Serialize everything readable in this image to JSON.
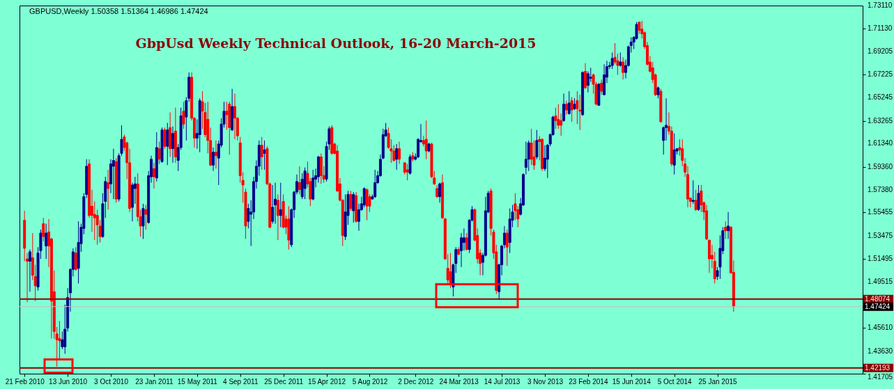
{
  "chart_data": {
    "type": "candlestick",
    "title": "GbpUsd Weekly Technical Outlook, 16-20 March-2015",
    "annotations": [
      "GBPUSD,Weekly  1.50358 1.51364 1.46986 1.47424"
    ],
    "x": [
      "2010-02-21",
      "2010-02-28",
      "2010-03-07",
      "2010-03-14",
      "2010-03-21",
      "2010-03-28",
      "2010-04-04",
      "2010-04-11",
      "2010-04-18",
      "2010-04-25",
      "2010-05-02",
      "2010-05-09",
      "2010-05-16",
      "2010-05-23",
      "2010-05-30",
      "2010-06-06",
      "2010-06-13",
      "2010-06-20",
      "2010-06-27",
      "2010-07-04",
      "2010-07-11",
      "2010-07-18",
      "2010-07-25",
      "2010-08-01",
      "2010-08-08",
      "2010-08-15",
      "2010-08-22",
      "2010-08-29",
      "2010-09-05",
      "2010-09-12",
      "2010-09-19",
      "2010-09-26",
      "2010-10-03",
      "2010-10-10",
      "2010-10-17",
      "2010-10-24",
      "2010-10-31",
      "2010-11-07",
      "2010-11-14",
      "2010-11-21",
      "2010-11-28",
      "2010-12-05",
      "2010-12-12",
      "2010-12-19",
      "2010-12-26",
      "2011-01-02",
      "2011-01-09",
      "2011-01-16",
      "2011-01-23",
      "2011-01-30",
      "2011-02-06",
      "2011-02-13",
      "2011-02-20",
      "2011-02-27",
      "2011-03-06",
      "2011-03-13",
      "2011-03-20",
      "2011-03-27",
      "2011-04-03",
      "2011-04-10",
      "2011-04-17",
      "2011-04-24",
      "2011-05-01",
      "2011-05-08",
      "2011-05-15",
      "2011-05-22",
      "2011-05-29",
      "2011-06-05",
      "2011-06-12",
      "2011-06-19",
      "2011-06-26",
      "2011-07-03",
      "2011-07-10",
      "2011-07-17",
      "2011-07-24",
      "2011-07-31",
      "2011-08-07",
      "2011-08-14",
      "2011-08-21",
      "2011-08-28",
      "2011-09-04",
      "2011-09-11",
      "2011-09-18",
      "2011-09-25",
      "2011-10-02",
      "2011-10-09",
      "2011-10-16",
      "2011-10-23",
      "2011-10-30",
      "2011-11-06",
      "2011-11-13",
      "2011-11-20",
      "2011-11-27",
      "2011-12-04",
      "2011-12-11",
      "2011-12-18",
      "2011-12-25",
      "2012-01-01",
      "2012-01-08",
      "2012-01-15",
      "2012-01-22",
      "2012-01-29",
      "2012-02-05",
      "2012-02-12",
      "2012-02-19",
      "2012-02-26",
      "2012-03-04",
      "2012-03-11",
      "2012-03-18",
      "2012-03-25",
      "2012-04-01",
      "2012-04-08",
      "2012-04-15",
      "2012-04-22",
      "2012-04-29",
      "2012-05-06",
      "2012-05-13",
      "2012-05-20",
      "2012-05-27",
      "2012-06-03",
      "2012-06-10",
      "2012-06-17",
      "2012-06-24",
      "2012-07-01",
      "2012-07-08",
      "2012-07-15",
      "2012-07-22",
      "2012-07-29",
      "2012-08-05",
      "2012-08-12",
      "2012-08-19",
      "2012-08-26",
      "2012-09-02",
      "2012-09-09",
      "2012-09-16",
      "2012-09-23",
      "2012-09-30",
      "2012-10-07",
      "2012-10-14",
      "2012-10-21",
      "2012-11-04",
      "2012-11-11",
      "2012-11-18",
      "2012-11-25",
      "2012-12-02",
      "2012-12-09",
      "2012-12-16",
      "2012-12-23",
      "2012-12-30",
      "2013-01-06",
      "2013-01-13",
      "2013-01-20",
      "2013-01-27",
      "2013-02-03",
      "2013-02-10",
      "2013-02-17",
      "2013-02-24",
      "2013-03-03",
      "2013-03-10",
      "2013-03-17",
      "2013-03-24",
      "2013-03-31",
      "2013-04-07",
      "2013-04-14",
      "2013-04-21",
      "2013-04-28",
      "2013-05-05",
      "2013-05-12",
      "2013-05-19",
      "2013-05-26",
      "2013-06-02",
      "2013-06-09",
      "2013-06-16",
      "2013-06-23",
      "2013-06-30",
      "2013-07-07",
      "2013-07-14",
      "2013-07-21",
      "2013-07-28",
      "2013-08-04",
      "2013-08-11",
      "2013-08-18",
      "2013-08-25",
      "2013-09-01",
      "2013-09-08",
      "2013-09-15",
      "2013-09-22",
      "2013-09-29",
      "2013-10-06",
      "2013-10-13",
      "2013-10-20",
      "2013-10-27",
      "2013-11-03",
      "2013-11-10",
      "2013-11-17",
      "2013-11-24",
      "2013-12-01",
      "2013-12-08",
      "2013-12-15",
      "2013-12-22",
      "2013-12-29",
      "2014-01-05",
      "2014-01-12",
      "2014-01-19",
      "2014-01-26",
      "2014-02-02",
      "2014-02-09",
      "2014-02-16",
      "2014-02-23",
      "2014-03-02",
      "2014-03-09",
      "2014-03-16",
      "2014-03-23",
      "2014-03-30",
      "2014-04-06",
      "2014-04-13",
      "2014-04-20",
      "2014-04-27",
      "2014-05-04",
      "2014-05-11",
      "2014-05-18",
      "2014-05-25",
      "2014-06-01",
      "2014-06-08",
      "2014-06-15",
      "2014-06-22",
      "2014-06-29",
      "2014-07-06",
      "2014-07-13",
      "2014-07-20",
      "2014-07-27",
      "2014-08-03",
      "2014-08-10",
      "2014-08-17",
      "2014-08-24",
      "2014-08-31",
      "2014-09-07",
      "2014-09-14",
      "2014-09-21",
      "2014-09-28",
      "2014-10-05",
      "2014-10-12",
      "2014-10-19",
      "2014-10-26",
      "2014-11-02",
      "2014-11-09",
      "2014-11-16",
      "2014-11-23",
      "2014-11-30",
      "2014-12-07",
      "2014-12-14",
      "2014-12-21",
      "2014-12-28",
      "2015-01-04",
      "2015-01-11",
      "2015-01-18",
      "2015-01-25",
      "2015-02-01",
      "2015-02-08",
      "2015-02-15",
      "2015-02-22",
      "2015-03-01",
      "2015-03-08"
    ],
    "ohlc": [
      [
        1.548,
        1.556,
        1.513,
        1.524
      ],
      [
        1.515,
        1.52,
        1.478,
        1.513
      ],
      [
        1.513,
        1.523,
        1.487,
        1.521
      ],
      [
        1.516,
        1.537,
        1.497,
        1.501
      ],
      [
        1.5,
        1.51,
        1.479,
        1.492
      ],
      [
        1.491,
        1.525,
        1.488,
        1.52
      ],
      [
        1.522,
        1.54,
        1.515,
        1.537
      ],
      [
        1.545,
        1.55,
        1.53,
        1.534
      ],
      [
        1.526,
        1.545,
        1.515,
        1.537
      ],
      [
        1.538,
        1.549,
        1.508,
        1.526
      ],
      [
        1.532,
        1.533,
        1.447,
        1.479
      ],
      [
        1.487,
        1.505,
        1.447,
        1.453
      ],
      [
        1.451,
        1.457,
        1.423,
        1.446
      ],
      [
        1.447,
        1.462,
        1.43,
        1.445
      ],
      [
        1.44,
        1.453,
        1.438,
        1.446
      ],
      [
        1.44,
        1.476,
        1.434,
        1.455
      ],
      [
        1.456,
        1.49,
        1.453,
        1.482
      ],
      [
        1.486,
        1.507,
        1.47,
        1.506
      ],
      [
        1.506,
        1.524,
        1.5,
        1.521
      ],
      [
        1.52,
        1.525,
        1.505,
        1.506
      ],
      [
        1.507,
        1.547,
        1.494,
        1.529
      ],
      [
        1.528,
        1.545,
        1.521,
        1.542
      ],
      [
        1.541,
        1.571,
        1.536,
        1.568
      ],
      [
        1.57,
        1.6,
        1.567,
        1.594
      ],
      [
        1.596,
        1.6,
        1.55,
        1.552
      ],
      [
        1.56,
        1.574,
        1.538,
        1.552
      ],
      [
        1.553,
        1.564,
        1.531,
        1.55
      ],
      [
        1.552,
        1.557,
        1.527,
        1.544
      ],
      [
        1.543,
        1.548,
        1.529,
        1.534
      ],
      [
        1.534,
        1.571,
        1.533,
        1.562
      ],
      [
        1.564,
        1.585,
        1.55,
        1.581
      ],
      [
        1.58,
        1.591,
        1.557,
        1.575
      ],
      [
        1.579,
        1.6,
        1.571,
        1.596
      ],
      [
        1.594,
        1.609,
        1.566,
        1.599
      ],
      [
        1.598,
        1.601,
        1.563,
        1.566
      ],
      [
        1.566,
        1.605,
        1.564,
        1.603
      ],
      [
        1.605,
        1.629,
        1.603,
        1.617
      ],
      [
        1.619,
        1.621,
        1.607,
        1.61
      ],
      [
        1.614,
        1.615,
        1.583,
        1.597
      ],
      [
        1.597,
        1.609,
        1.555,
        1.558
      ],
      [
        1.559,
        1.58,
        1.547,
        1.578
      ],
      [
        1.575,
        1.585,
        1.562,
        1.579
      ],
      [
        1.579,
        1.588,
        1.547,
        1.551
      ],
      [
        1.551,
        1.557,
        1.534,
        1.543
      ],
      [
        1.543,
        1.562,
        1.532,
        1.558
      ],
      [
        1.557,
        1.561,
        1.54,
        1.553
      ],
      [
        1.546,
        1.59,
        1.545,
        1.586
      ],
      [
        1.585,
        1.603,
        1.58,
        1.6
      ],
      [
        1.592,
        1.597,
        1.575,
        1.585
      ],
      [
        1.584,
        1.623,
        1.581,
        1.61
      ],
      [
        1.609,
        1.615,
        1.596,
        1.6
      ],
      [
        1.598,
        1.627,
        1.597,
        1.625
      ],
      [
        1.625,
        1.627,
        1.609,
        1.611
      ],
      [
        1.611,
        1.631,
        1.595,
        1.625
      ],
      [
        1.627,
        1.64,
        1.602,
        1.609
      ],
      [
        1.609,
        1.628,
        1.597,
        1.622
      ],
      [
        1.624,
        1.644,
        1.597,
        1.602
      ],
      [
        1.599,
        1.613,
        1.59,
        1.61
      ],
      [
        1.61,
        1.644,
        1.608,
        1.637
      ],
      [
        1.641,
        1.649,
        1.626,
        1.63
      ],
      [
        1.636,
        1.653,
        1.616,
        1.65
      ],
      [
        1.652,
        1.674,
        1.649,
        1.67
      ],
      [
        1.67,
        1.674,
        1.633,
        1.635
      ],
      [
        1.635,
        1.636,
        1.61,
        1.618
      ],
      [
        1.618,
        1.634,
        1.609,
        1.622
      ],
      [
        1.621,
        1.652,
        1.606,
        1.65
      ],
      [
        1.649,
        1.658,
        1.626,
        1.641
      ],
      [
        1.64,
        1.648,
        1.619,
        1.621
      ],
      [
        1.634,
        1.649,
        1.605,
        1.616
      ],
      [
        1.616,
        1.627,
        1.594,
        1.595
      ],
      [
        1.595,
        1.61,
        1.59,
        1.606
      ],
      [
        1.606,
        1.616,
        1.592,
        1.603
      ],
      [
        1.601,
        1.616,
        1.578,
        1.613
      ],
      [
        1.612,
        1.635,
        1.61,
        1.63
      ],
      [
        1.63,
        1.649,
        1.627,
        1.641
      ],
      [
        1.641,
        1.649,
        1.625,
        1.638
      ],
      [
        1.647,
        1.649,
        1.604,
        1.627
      ],
      [
        1.625,
        1.66,
        1.624,
        1.645
      ],
      [
        1.645,
        1.656,
        1.617,
        1.635
      ],
      [
        1.635,
        1.636,
        1.616,
        1.62
      ],
      [
        1.614,
        1.619,
        1.58,
        1.586
      ],
      [
        1.582,
        1.589,
        1.563,
        1.578
      ],
      [
        1.572,
        1.575,
        1.532,
        1.543
      ],
      [
        1.547,
        1.562,
        1.541,
        1.558
      ],
      [
        1.553,
        1.565,
        1.526,
        1.555
      ],
      [
        1.555,
        1.585,
        1.549,
        1.581
      ],
      [
        1.581,
        1.599,
        1.575,
        1.594
      ],
      [
        1.594,
        1.616,
        1.586,
        1.612
      ],
      [
        1.612,
        1.619,
        1.591,
        1.602
      ],
      [
        1.605,
        1.616,
        1.591,
        1.608
      ],
      [
        1.609,
        1.611,
        1.578,
        1.579
      ],
      [
        1.579,
        1.58,
        1.541,
        1.542
      ],
      [
        1.547,
        1.578,
        1.545,
        1.559
      ],
      [
        1.561,
        1.58,
        1.545,
        1.566
      ],
      [
        1.565,
        1.57,
        1.531,
        1.552
      ],
      [
        1.552,
        1.58,
        1.542,
        1.557
      ],
      [
        1.564,
        1.57,
        1.541,
        1.542
      ],
      [
        1.549,
        1.552,
        1.536,
        1.542
      ],
      [
        1.549,
        1.56,
        1.523,
        1.531
      ],
      [
        1.527,
        1.558,
        1.525,
        1.557
      ],
      [
        1.557,
        1.573,
        1.55,
        1.572
      ],
      [
        1.572,
        1.587,
        1.57,
        1.581
      ],
      [
        1.58,
        1.594,
        1.57,
        1.574
      ],
      [
        1.568,
        1.588,
        1.566,
        1.583
      ],
      [
        1.575,
        1.593,
        1.566,
        1.59
      ],
      [
        1.588,
        1.598,
        1.576,
        1.579
      ],
      [
        1.581,
        1.584,
        1.56,
        1.566
      ],
      [
        1.566,
        1.591,
        1.565,
        1.584
      ],
      [
        1.583,
        1.592,
        1.576,
        1.586
      ],
      [
        1.585,
        1.603,
        1.58,
        1.602
      ],
      [
        1.602,
        1.605,
        1.579,
        1.586
      ],
      [
        1.586,
        1.594,
        1.58,
        1.583
      ],
      [
        1.583,
        1.615,
        1.581,
        1.611
      ],
      [
        1.613,
        1.628,
        1.608,
        1.626
      ],
      [
        1.627,
        1.629,
        1.604,
        1.605
      ],
      [
        1.613,
        1.614,
        1.604,
        1.605
      ],
      [
        1.607,
        1.612,
        1.572,
        1.573
      ],
      [
        1.579,
        1.584,
        1.564,
        1.565
      ],
      [
        1.565,
        1.566,
        1.526,
        1.535
      ],
      [
        1.534,
        1.57,
        1.531,
        1.555
      ],
      [
        1.552,
        1.573,
        1.544,
        1.57
      ],
      [
        1.57,
        1.573,
        1.556,
        1.558
      ],
      [
        1.556,
        1.572,
        1.546,
        1.57
      ],
      [
        1.569,
        1.572,
        1.546,
        1.547
      ],
      [
        1.547,
        1.562,
        1.539,
        1.557
      ],
      [
        1.557,
        1.568,
        1.556,
        1.562
      ],
      [
        1.561,
        1.576,
        1.559,
        1.575
      ],
      [
        1.574,
        1.575,
        1.548,
        1.56
      ],
      [
        1.568,
        1.57,
        1.555,
        1.56
      ],
      [
        1.566,
        1.57,
        1.566,
        1.568
      ],
      [
        1.568,
        1.591,
        1.567,
        1.58
      ],
      [
        1.58,
        1.59,
        1.579,
        1.586
      ],
      [
        1.586,
        1.604,
        1.585,
        1.6
      ],
      [
        1.601,
        1.626,
        1.6,
        1.621
      ],
      [
        1.62,
        1.631,
        1.619,
        1.625
      ],
      [
        1.622,
        1.627,
        1.609,
        1.61
      ],
      [
        1.609,
        1.617,
        1.597,
        1.607
      ],
      [
        1.607,
        1.612,
        1.598,
        1.599
      ],
      [
        1.6,
        1.613,
        1.591,
        1.609
      ],
      [
        1.609,
        1.615,
        1.596,
        1.6
      ],
      [
        1.597,
        1.597,
        1.587,
        1.589
      ],
      [
        1.591,
        1.596,
        1.582,
        1.589
      ],
      [
        1.588,
        1.604,
        1.587,
        1.602
      ],
      [
        1.603,
        1.606,
        1.598,
        1.6
      ],
      [
        1.6,
        1.605,
        1.599,
        1.602
      ],
      [
        1.602,
        1.618,
        1.601,
        1.617
      ],
      [
        1.615,
        1.63,
        1.614,
        1.616
      ],
      [
        1.616,
        1.62,
        1.611,
        1.613
      ],
      [
        1.617,
        1.633,
        1.6,
        1.607
      ],
      [
        1.607,
        1.614,
        1.606,
        1.613
      ],
      [
        1.613,
        1.614,
        1.584,
        1.585
      ],
      [
        1.584,
        1.59,
        1.578,
        1.579
      ],
      [
        1.575,
        1.578,
        1.567,
        1.568
      ],
      [
        1.568,
        1.58,
        1.563,
        1.579
      ],
      [
        1.58,
        1.587,
        1.549,
        1.55
      ],
      [
        1.549,
        1.55,
        1.514,
        1.515
      ],
      [
        1.507,
        1.519,
        1.493,
        1.497
      ],
      [
        1.504,
        1.52,
        1.49,
        1.493
      ],
      [
        1.491,
        1.511,
        1.483,
        1.51
      ],
      [
        1.511,
        1.525,
        1.503,
        1.523
      ],
      [
        1.523,
        1.525,
        1.518,
        1.519
      ],
      [
        1.522,
        1.537,
        1.508,
        1.533
      ],
      [
        1.529,
        1.541,
        1.522,
        1.533
      ],
      [
        1.533,
        1.537,
        1.522,
        1.523
      ],
      [
        1.523,
        1.549,
        1.52,
        1.548
      ],
      [
        1.548,
        1.56,
        1.547,
        1.557
      ],
      [
        1.557,
        1.558,
        1.53,
        1.531
      ],
      [
        1.535,
        1.541,
        1.511,
        1.515
      ],
      [
        1.52,
        1.523,
        1.501,
        1.511
      ],
      [
        1.512,
        1.52,
        1.501,
        1.518
      ],
      [
        1.518,
        1.568,
        1.517,
        1.556
      ],
      [
        1.555,
        1.573,
        1.554,
        1.571
      ],
      [
        1.573,
        1.575,
        1.535,
        1.541
      ],
      [
        1.538,
        1.54,
        1.515,
        1.52
      ],
      [
        1.521,
        1.527,
        1.485,
        1.488
      ],
      [
        1.487,
        1.511,
        1.48,
        1.51
      ],
      [
        1.51,
        1.527,
        1.501,
        1.526
      ],
      [
        1.527,
        1.543,
        1.524,
        1.537
      ],
      [
        1.537,
        1.54,
        1.509,
        1.525
      ],
      [
        1.529,
        1.558,
        1.52,
        1.549
      ],
      [
        1.548,
        1.561,
        1.542,
        1.555
      ],
      [
        1.562,
        1.571,
        1.548,
        1.556
      ],
      [
        1.557,
        1.56,
        1.542,
        1.549
      ],
      [
        1.553,
        1.567,
        1.552,
        1.562
      ],
      [
        1.561,
        1.588,
        1.56,
        1.587
      ],
      [
        1.593,
        1.615,
        1.587,
        1.6
      ],
      [
        1.6,
        1.616,
        1.59,
        1.614
      ],
      [
        1.614,
        1.626,
        1.595,
        1.6
      ],
      [
        1.602,
        1.616,
        1.591,
        1.595
      ],
      [
        1.602,
        1.625,
        1.6,
        1.616
      ],
      [
        1.617,
        1.62,
        1.599,
        1.615
      ],
      [
        1.617,
        1.618,
        1.59,
        1.592
      ],
      [
        1.592,
        1.612,
        1.59,
        1.601
      ],
      [
        1.6,
        1.613,
        1.584,
        1.612
      ],
      [
        1.613,
        1.622,
        1.611,
        1.621
      ],
      [
        1.621,
        1.637,
        1.62,
        1.636
      ],
      [
        1.637,
        1.644,
        1.626,
        1.633
      ],
      [
        1.634,
        1.647,
        1.626,
        1.629
      ],
      [
        1.633,
        1.639,
        1.62,
        1.629
      ],
      [
        1.633,
        1.656,
        1.632,
        1.647
      ],
      [
        1.647,
        1.65,
        1.638,
        1.642
      ],
      [
        1.639,
        1.658,
        1.638,
        1.648
      ],
      [
        1.65,
        1.653,
        1.632,
        1.642
      ],
      [
        1.643,
        1.652,
        1.642,
        1.647
      ],
      [
        1.65,
        1.658,
        1.63,
        1.643
      ],
      [
        1.642,
        1.655,
        1.625,
        1.641
      ],
      [
        1.638,
        1.675,
        1.637,
        1.674
      ],
      [
        1.675,
        1.682,
        1.66,
        1.661
      ],
      [
        1.663,
        1.675,
        1.657,
        1.673
      ],
      [
        1.669,
        1.678,
        1.666,
        1.67
      ],
      [
        1.672,
        1.673,
        1.656,
        1.664
      ],
      [
        1.664,
        1.666,
        1.646,
        1.647
      ],
      [
        1.646,
        1.665,
        1.646,
        1.664
      ],
      [
        1.665,
        1.668,
        1.655,
        1.658
      ],
      [
        1.655,
        1.681,
        1.655,
        1.672
      ],
      [
        1.67,
        1.684,
        1.665,
        1.679
      ],
      [
        1.679,
        1.683,
        1.677,
        1.68
      ],
      [
        1.68,
        1.691,
        1.677,
        1.686
      ],
      [
        1.687,
        1.699,
        1.681,
        1.683
      ],
      [
        1.684,
        1.69,
        1.672,
        1.68
      ],
      [
        1.68,
        1.691,
        1.679,
        1.683
      ],
      [
        1.683,
        1.687,
        1.668,
        1.674
      ],
      [
        1.674,
        1.685,
        1.669,
        1.68
      ],
      [
        1.68,
        1.697,
        1.679,
        1.696
      ],
      [
        1.697,
        1.704,
        1.691,
        1.7
      ],
      [
        1.7,
        1.705,
        1.694,
        1.704
      ],
      [
        1.703,
        1.717,
        1.702,
        1.715
      ],
      [
        1.717,
        1.717,
        1.707,
        1.71
      ],
      [
        1.711,
        1.718,
        1.703,
        1.707
      ],
      [
        1.708,
        1.709,
        1.694,
        1.696
      ],
      [
        1.697,
        1.7,
        1.68,
        1.681
      ],
      [
        1.683,
        1.688,
        1.674,
        1.675
      ],
      [
        1.678,
        1.683,
        1.665,
        1.668
      ],
      [
        1.672,
        1.673,
        1.654,
        1.655
      ],
      [
        1.655,
        1.662,
        1.652,
        1.661
      ],
      [
        1.658,
        1.66,
        1.631,
        1.632
      ],
      [
        1.616,
        1.628,
        1.604,
        1.627
      ],
      [
        1.627,
        1.652,
        1.616,
        1.629
      ],
      [
        1.628,
        1.64,
        1.621,
        1.624
      ],
      [
        1.624,
        1.628,
        1.594,
        1.596
      ],
      [
        1.595,
        1.622,
        1.587,
        1.608
      ],
      [
        1.607,
        1.609,
        1.604,
        1.609
      ],
      [
        1.61,
        1.617,
        1.603,
        1.608
      ],
      [
        1.609,
        1.617,
        1.594,
        1.599
      ],
      [
        1.596,
        1.601,
        1.585,
        1.589
      ],
      [
        1.587,
        1.594,
        1.559,
        1.566
      ],
      [
        1.567,
        1.567,
        1.559,
        1.564
      ],
      [
        1.564,
        1.582,
        1.562,
        1.565
      ],
      [
        1.565,
        1.574,
        1.556,
        1.557
      ],
      [
        1.557,
        1.578,
        1.556,
        1.571
      ],
      [
        1.573,
        1.578,
        1.555,
        1.561
      ],
      [
        1.563,
        1.564,
        1.548,
        1.555
      ],
      [
        1.556,
        1.561,
        1.531,
        1.532
      ],
      [
        1.531,
        1.531,
        1.503,
        1.515
      ],
      [
        1.518,
        1.527,
        1.507,
        1.515
      ],
      [
        1.513,
        1.521,
        1.494,
        1.498
      ],
      [
        1.5,
        1.508,
        1.497,
        1.505
      ],
      [
        1.508,
        1.535,
        1.498,
        1.524
      ],
      [
        1.522,
        1.542,
        1.519,
        1.539
      ],
      [
        1.542,
        1.547,
        1.532,
        1.539
      ],
      [
        1.539,
        1.555,
        1.532,
        1.543
      ],
      [
        1.542,
        1.543,
        1.503,
        1.503
      ],
      [
        1.50358,
        1.51364,
        1.46986,
        1.47424
      ]
    ],
    "colors": [
      "#ff0000",
      "#ff0000",
      "#00008b",
      "#ff0000",
      "#ff0000",
      "#00008b",
      "#00008b",
      "#ff0000",
      "#00008b",
      "#ff0000",
      "#ff0000",
      "#ff0000",
      "#ff0000",
      "#ff0000",
      "#00008b",
      "#00008b",
      "#00008b",
      "#00008b",
      "#00008b",
      "#ff0000",
      "#00008b",
      "#00008b",
      "#00008b",
      "#00008b",
      "#ff0000",
      "#ff0000",
      "#ff0000",
      "#ff0000",
      "#ff0000",
      "#00008b",
      "#00008b",
      "#ff0000",
      "#00008b",
      "#00008b",
      "#ff0000",
      "#00008b",
      "#00008b",
      "#ff0000",
      "#ff0000",
      "#ff0000",
      "#00008b",
      "#00008b",
      "#ff0000",
      "#ff0000",
      "#00008b",
      "#ff0000",
      "#00008b",
      "#00008b",
      "#ff0000",
      "#00008b",
      "#ff0000",
      "#00008b",
      "#ff0000",
      "#00008b",
      "#ff0000",
      "#00008b",
      "#ff0000",
      "#00008b",
      "#00008b",
      "#ff0000",
      "#00008b",
      "#00008b",
      "#ff0000",
      "#ff0000",
      "#00008b",
      "#00008b",
      "#ff0000",
      "#ff0000",
      "#ff0000",
      "#ff0000",
      "#00008b",
      "#ff0000",
      "#00008b",
      "#00008b",
      "#00008b",
      "#ff0000",
      "#ff0000",
      "#00008b",
      "#ff0000",
      "#ff0000",
      "#ff0000",
      "#ff0000",
      "#ff0000",
      "#00008b",
      "#00008b",
      "#00008b",
      "#00008b",
      "#00008b",
      "#ff0000",
      "#00008b",
      "#ff0000",
      "#ff0000",
      "#00008b",
      "#00008b",
      "#ff0000",
      "#00008b",
      "#ff0000",
      "#ff0000",
      "#ff0000",
      "#00008b",
      "#00008b",
      "#00008b",
      "#ff0000",
      "#00008b",
      "#00008b",
      "#ff0000",
      "#ff0000",
      "#00008b",
      "#00008b",
      "#00008b",
      "#ff0000",
      "#ff0000",
      "#00008b",
      "#00008b",
      "#ff0000",
      "#ff0000",
      "#ff0000",
      "#ff0000",
      "#ff0000",
      "#00008b",
      "#00008b",
      "#ff0000",
      "#00008b",
      "#ff0000",
      "#00008b",
      "#00008b",
      "#00008b",
      "#ff0000",
      "#ff0000",
      "#00008b",
      "#00008b",
      "#00008b",
      "#00008b",
      "#00008b",
      "#00008b",
      "#ff0000",
      "#ff0000",
      "#ff0000",
      "#00008b",
      "#ff0000",
      "#ff0000",
      "#ff0000",
      "#00008b",
      "#ff0000",
      "#00008b",
      "#00008b",
      "#00008b",
      "#ff0000",
      "#ff0000",
      "#00008b",
      "#ff0000",
      "#ff0000",
      "#ff0000",
      "#00008b",
      "#ff0000",
      "#ff0000",
      "#ff0000",
      "#ff0000",
      "#00008b",
      "#00008b",
      "#ff0000",
      "#00008b",
      "#00008b",
      "#ff0000",
      "#00008b",
      "#00008b",
      "#ff0000",
      "#ff0000",
      "#ff0000",
      "#00008b",
      "#00008b",
      "#00008b",
      "#ff0000",
      "#ff0000",
      "#ff0000",
      "#00008b",
      "#00008b",
      "#00008b",
      "#ff0000",
      "#00008b",
      "#00008b",
      "#ff0000",
      "#ff0000",
      "#00008b",
      "#00008b",
      "#00008b",
      "#00008b",
      "#ff0000",
      "#ff0000",
      "#00008b",
      "#ff0000",
      "#ff0000",
      "#00008b",
      "#00008b",
      "#00008b",
      "#00008b",
      "#ff0000",
      "#ff0000",
      "#ff0000",
      "#00008b",
      "#ff0000",
      "#00008b",
      "#ff0000",
      "#00008b",
      "#ff0000",
      "#ff0000",
      "#00008b",
      "#ff0000",
      "#00008b",
      "#00008b",
      "#ff0000",
      "#ff0000",
      "#00008b",
      "#ff0000",
      "#00008b",
      "#00008b",
      "#00008b",
      "#00008b",
      "#ff0000",
      "#ff0000",
      "#00008b",
      "#ff0000",
      "#00008b",
      "#00008b",
      "#00008b",
      "#00008b",
      "#00008b",
      "#ff0000",
      "#ff0000",
      "#ff0000",
      "#ff0000",
      "#ff0000",
      "#ff0000",
      "#ff0000",
      "#00008b",
      "#ff0000",
      "#00008b",
      "#00008b",
      "#ff0000",
      "#ff0000",
      "#00008b",
      "#00008b",
      "#ff0000",
      "#ff0000",
      "#ff0000",
      "#ff0000",
      "#ff0000",
      "#00008b",
      "#ff0000",
      "#00008b",
      "#ff0000",
      "#ff0000",
      "#ff0000",
      "#ff0000",
      "#ff0000",
      "#ff0000",
      "#00008b",
      "#00008b",
      "#00008b",
      "#ff0000",
      "#00008b",
      "#ff0000",
      "#ff0000"
    ],
    "xlim": [
      "2010-02-17",
      "2016-01-28"
    ],
    "xticks": [
      {
        "value": "2010-02-21",
        "label": "21 Feb 2010"
      },
      {
        "value": "2010-06-13",
        "label": "13 Jun 2010"
      },
      {
        "value": "2010-10-03",
        "label": "3 Oct 2010"
      },
      {
        "value": "2011-01-23",
        "label": "23 Jan 2011"
      },
      {
        "value": "2011-05-15",
        "label": "15 May 2011"
      },
      {
        "value": "2011-09-04",
        "label": "4 Sep 2011"
      },
      {
        "value": "2011-12-25",
        "label": "25 Dec 2011"
      },
      {
        "value": "2012-04-15",
        "label": "15 Apr 2012"
      },
      {
        "value": "2012-08-05",
        "label": "5 Aug 2012"
      },
      {
        "value": "2012-12-02",
        "label": "2 Dec 2012"
      },
      {
        "value": "2013-03-24",
        "label": "24 Mar 2013"
      },
      {
        "value": "2013-07-14",
        "label": "14 Jul 2013"
      },
      {
        "value": "2013-11-03",
        "label": "3 Nov 2013"
      },
      {
        "value": "2014-02-23",
        "label": "23 Feb 2014"
      },
      {
        "value": "2014-06-15",
        "label": "15 Jun 2014"
      },
      {
        "value": "2014-10-05",
        "label": "5 Oct 2014"
      },
      {
        "value": "2015-01-25",
        "label": "25 Jan 2015"
      }
    ],
    "ylim": [
      1.41705,
      1.7311
    ],
    "yticks": [
      {
        "value": 1.7311,
        "label": "1.73110"
      },
      {
        "value": 1.7113,
        "label": "1.71130"
      },
      {
        "value": 1.69205,
        "label": "1.69205"
      },
      {
        "value": 1.67225,
        "label": "1.67225"
      },
      {
        "value": 1.65245,
        "label": "1.65245"
      },
      {
        "value": 1.63265,
        "label": "1.63265"
      },
      {
        "value": 1.6134,
        "label": "1.61340"
      },
      {
        "value": 1.5936,
        "label": "1.59360"
      },
      {
        "value": 1.5738,
        "label": "1.57380"
      },
      {
        "value": 1.55455,
        "label": "1.55455"
      },
      {
        "value": 1.53475,
        "label": "1.53475"
      },
      {
        "value": 1.51495,
        "label": "1.51495"
      },
      {
        "value": 1.49515,
        "label": "1.49515"
      },
      {
        "value": 1.4561,
        "label": "1.45610"
      },
      {
        "value": 1.4363,
        "label": "1.43630"
      },
      {
        "value": 1.41705,
        "label": "1.41705"
      }
    ],
    "ref_lines": [
      {
        "axis": "y",
        "value": 1.48074,
        "label": "1.48074",
        "color": "#8b0000"
      },
      {
        "axis": "y",
        "value": 1.47424,
        "label": "1.47424",
        "color": "#c0c0c0"
      },
      {
        "axis": "y",
        "value": 1.42193,
        "label": "1.42193",
        "color": "#8b0000"
      }
    ]
  }
}
